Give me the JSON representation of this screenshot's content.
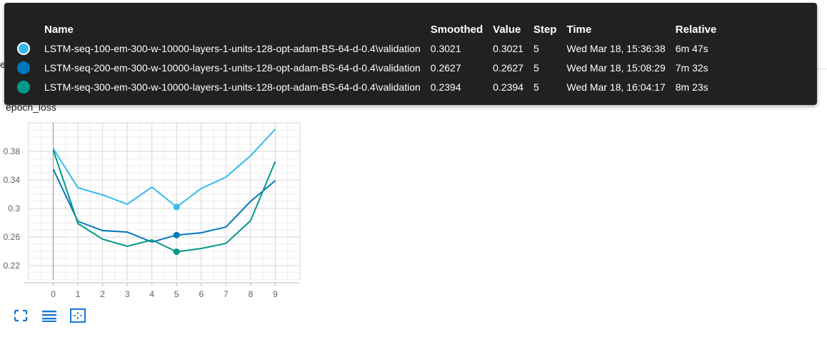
{
  "chart_title": "epoch_loss",
  "under_title": "epoch_loss",
  "tooltip": {
    "headers": {
      "name": "Name",
      "smoothed": "Smoothed",
      "value": "Value",
      "step": "Step",
      "time": "Time",
      "relative": "Relative"
    },
    "rows": [
      {
        "color": "#33bbee",
        "name": "LSTM-seq-100-em-300-w-10000-layers-1-units-128-opt-adam-BS-64-d-0.4\\validation",
        "smoothed": "0.3021",
        "value": "0.3021",
        "step": "5",
        "time": "Wed Mar 18, 15:36:38",
        "relative": "6m 47s"
      },
      {
        "color": "#0077bb",
        "name": "LSTM-seq-200-em-300-w-10000-layers-1-units-128-opt-adam-BS-64-d-0.4\\validation",
        "smoothed": "0.2627",
        "value": "0.2627",
        "step": "5",
        "time": "Wed Mar 18, 15:08:29",
        "relative": "7m 32s"
      },
      {
        "color": "#009988",
        "name": "LSTM-seq-300-em-300-w-10000-layers-1-units-128-opt-adam-BS-64-d-0.4\\validation",
        "smoothed": "0.2394",
        "value": "0.2394",
        "step": "5",
        "time": "Wed Mar 18, 16:04:17",
        "relative": "8m 23s"
      }
    ]
  },
  "icons": [
    "fit-domain-icon",
    "toggle-log-icon",
    "fit-data-icon"
  ],
  "chart_data": {
    "type": "line",
    "title": "epoch_loss",
    "xlabel": "",
    "ylabel": "",
    "x": [
      0,
      1,
      2,
      3,
      4,
      5,
      6,
      7,
      8,
      9
    ],
    "x_ticks": [
      "0",
      "1",
      "2",
      "3",
      "4",
      "5",
      "6",
      "7",
      "8",
      "9"
    ],
    "y_ticks": [
      "0.22",
      "0.26",
      "0.3",
      "0.34",
      "0.38"
    ],
    "xlim": [
      -1,
      10
    ],
    "ylim": [
      0.2,
      0.42
    ],
    "grid": true,
    "highlight_step": 5,
    "series": [
      {
        "color": "#33bbee",
        "values": [
          0.384,
          0.329,
          0.319,
          0.306,
          0.33,
          0.3021,
          0.328,
          0.344,
          0.374,
          0.411
        ]
      },
      {
        "color": "#0077bb",
        "values": [
          0.355,
          0.282,
          0.269,
          0.267,
          0.253,
          0.2627,
          0.266,
          0.274,
          0.31,
          0.339
        ]
      },
      {
        "color": "#009988",
        "values": [
          0.382,
          0.279,
          0.257,
          0.247,
          0.256,
          0.2394,
          0.244,
          0.251,
          0.283,
          0.366
        ]
      }
    ]
  }
}
